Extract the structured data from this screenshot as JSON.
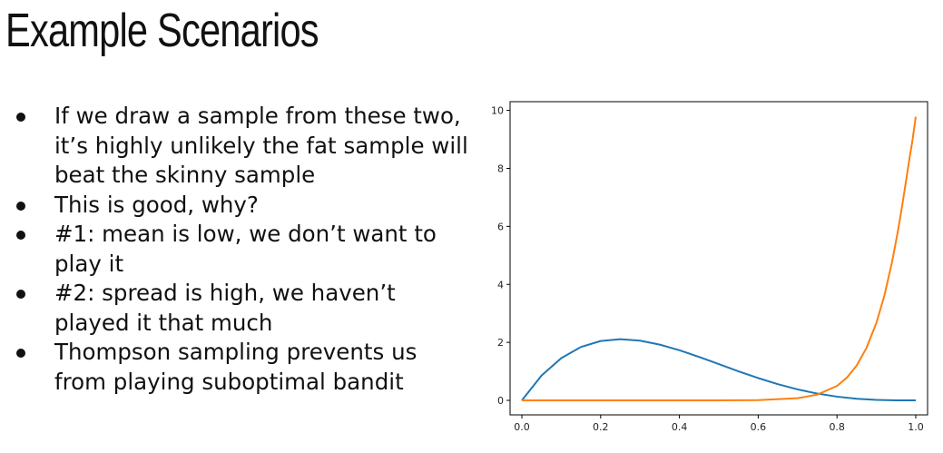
{
  "slide": {
    "title": "Example Scenarios",
    "bullets": [
      "If we draw a sample from these two, it’s highly unlikely the fat sample will beat the skinny sample",
      "This is good, why?",
      "#1: mean is low, we don’t want to play it",
      "#2: spread is high, we haven’t played it that much",
      "Thompson sampling prevents us from playing suboptimal bandit"
    ]
  },
  "chart_data": {
    "type": "line",
    "title": "",
    "xlabel": "",
    "ylabel": "",
    "xlim": [
      -0.03,
      1.03
    ],
    "ylim": [
      -0.5,
      10.3
    ],
    "xticks": [
      0.0,
      0.2,
      0.4,
      0.6,
      0.8,
      1.0
    ],
    "xtick_labels": [
      "0.0",
      "0.2",
      "0.4",
      "0.6",
      "0.8",
      "1.0"
    ],
    "yticks": [
      0,
      2,
      4,
      6,
      8,
      10
    ],
    "ytick_labels": [
      "0",
      "2",
      "4",
      "6",
      "8",
      "10"
    ],
    "grid": false,
    "series": [
      {
        "color": "#1f77b4",
        "x": [
          0.0,
          0.05,
          0.1,
          0.15,
          0.2,
          0.25,
          0.3,
          0.35,
          0.4,
          0.45,
          0.5,
          0.55,
          0.6,
          0.65,
          0.7,
          0.75,
          0.8,
          0.85,
          0.9,
          0.95,
          1.0
        ],
        "y": [
          0.0,
          0.857,
          1.458,
          1.842,
          2.048,
          2.109,
          2.058,
          1.922,
          1.728,
          1.497,
          1.25,
          1.0,
          0.768,
          0.558,
          0.378,
          0.234,
          0.128,
          0.057,
          0.018,
          0.002,
          0.0
        ]
      },
      {
        "color": "#ff7f0e",
        "x": [
          0.0,
          0.5,
          0.6,
          0.7,
          0.75,
          0.8,
          0.825,
          0.85,
          0.875,
          0.9,
          0.92,
          0.94,
          0.955,
          0.965,
          0.975,
          0.985,
          0.992,
          1.0
        ],
        "y": [
          0.0,
          0.0,
          0.009,
          0.076,
          0.198,
          0.498,
          0.781,
          1.202,
          1.811,
          2.669,
          3.592,
          4.78,
          5.86,
          6.67,
          7.54,
          8.42,
          9.0,
          9.78
        ]
      }
    ]
  }
}
